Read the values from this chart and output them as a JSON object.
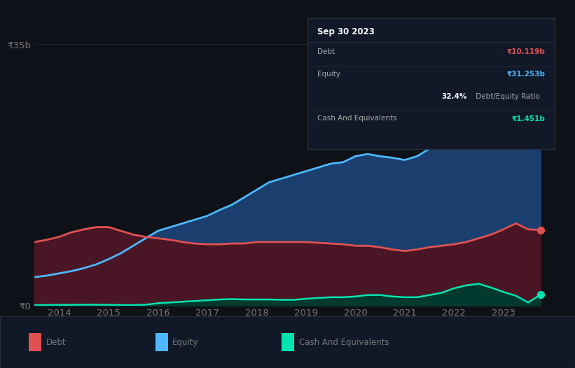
{
  "background_color": "#0e1117",
  "chart_bg": "#0e1117",
  "ylabel_35b": "₹35b",
  "ylabel_0": "₹0",
  "ylim": [
    0,
    37
  ],
  "xlim": [
    2013.5,
    2024.1
  ],
  "equity": {
    "x": [
      2013.5,
      2013.75,
      2014.0,
      2014.25,
      2014.5,
      2014.75,
      2015.0,
      2015.25,
      2015.5,
      2015.75,
      2016.0,
      2016.25,
      2016.5,
      2016.75,
      2017.0,
      2017.25,
      2017.5,
      2017.75,
      2018.0,
      2018.25,
      2018.5,
      2018.75,
      2019.0,
      2019.25,
      2019.5,
      2019.75,
      2020.0,
      2020.25,
      2020.5,
      2020.75,
      2021.0,
      2021.25,
      2021.5,
      2021.75,
      2022.0,
      2022.25,
      2022.5,
      2022.75,
      2023.0,
      2023.25,
      2023.5,
      2023.75
    ],
    "y": [
      3.8,
      4.0,
      4.3,
      4.6,
      5.0,
      5.5,
      6.2,
      7.0,
      8.0,
      9.0,
      10.0,
      10.5,
      11.0,
      11.5,
      12.0,
      12.8,
      13.5,
      14.5,
      15.5,
      16.5,
      17.0,
      17.5,
      18.0,
      18.5,
      19.0,
      19.2,
      20.0,
      20.3,
      20.0,
      19.8,
      19.5,
      20.0,
      21.0,
      22.0,
      22.5,
      23.0,
      24.0,
      25.5,
      27.0,
      28.5,
      30.5,
      31.253
    ],
    "color": "#4db8ff",
    "fill_color": "#1a3f6f",
    "linewidth": 2.0,
    "dot_color": "#4db8ff",
    "dot_size": 50
  },
  "debt": {
    "x": [
      2013.5,
      2013.75,
      2014.0,
      2014.25,
      2014.5,
      2014.75,
      2015.0,
      2015.25,
      2015.5,
      2015.75,
      2016.0,
      2016.25,
      2016.5,
      2016.75,
      2017.0,
      2017.25,
      2017.5,
      2017.75,
      2018.0,
      2018.25,
      2018.5,
      2018.75,
      2019.0,
      2019.25,
      2019.5,
      2019.75,
      2020.0,
      2020.25,
      2020.5,
      2020.75,
      2021.0,
      2021.25,
      2021.5,
      2021.75,
      2022.0,
      2022.25,
      2022.5,
      2022.75,
      2023.0,
      2023.25,
      2023.5,
      2023.75
    ],
    "y": [
      8.5,
      8.8,
      9.2,
      9.8,
      10.2,
      10.5,
      10.5,
      10.0,
      9.5,
      9.2,
      9.0,
      8.8,
      8.5,
      8.3,
      8.2,
      8.2,
      8.3,
      8.3,
      8.5,
      8.5,
      8.5,
      8.5,
      8.5,
      8.4,
      8.3,
      8.2,
      8.0,
      8.0,
      7.8,
      7.5,
      7.3,
      7.5,
      7.8,
      8.0,
      8.2,
      8.5,
      9.0,
      9.5,
      10.2,
      11.0,
      10.2,
      10.119
    ],
    "color": "#e05252",
    "fill_color": "#4a1525",
    "linewidth": 2.0,
    "dot_color": "#e05252",
    "dot_size": 50
  },
  "cash": {
    "x": [
      2013.5,
      2013.75,
      2014.0,
      2014.25,
      2014.5,
      2014.75,
      2015.0,
      2015.25,
      2015.5,
      2015.75,
      2016.0,
      2016.25,
      2016.5,
      2016.75,
      2017.0,
      2017.25,
      2017.5,
      2017.75,
      2018.0,
      2018.25,
      2018.5,
      2018.75,
      2019.0,
      2019.25,
      2019.5,
      2019.75,
      2020.0,
      2020.25,
      2020.5,
      2020.75,
      2021.0,
      2021.25,
      2021.5,
      2021.75,
      2022.0,
      2022.25,
      2022.5,
      2022.75,
      2023.0,
      2023.25,
      2023.5,
      2023.75
    ],
    "y": [
      0.05,
      0.05,
      0.08,
      0.08,
      0.1,
      0.1,
      0.08,
      0.05,
      0.05,
      0.1,
      0.3,
      0.4,
      0.5,
      0.6,
      0.7,
      0.8,
      0.85,
      0.8,
      0.8,
      0.8,
      0.75,
      0.75,
      0.9,
      1.0,
      1.1,
      1.1,
      1.2,
      1.4,
      1.4,
      1.2,
      1.1,
      1.1,
      1.4,
      1.7,
      2.3,
      2.7,
      2.9,
      2.4,
      1.8,
      1.3,
      0.4,
      1.451
    ],
    "color": "#00e5b0",
    "fill_color": "#003a2e",
    "linewidth": 1.8,
    "dot_color": "#00e5b0",
    "dot_size": 50
  },
  "tooltip": {
    "bg_color": "#111827",
    "border_color": "#2a2d3a",
    "date": "Sep 30 2023",
    "date_color": "#ffffff",
    "rows": [
      {
        "label": "Debt",
        "value": "₹10.119b",
        "value_color": "#e05252"
      },
      {
        "label": "Equity",
        "value": "₹31.253b",
        "value_color": "#4db8ff"
      },
      {
        "label_bold": "32.4%",
        "label_rest": " Debt/Equity Ratio",
        "value": "",
        "value_color": ""
      },
      {
        "label": "Cash And Equivalents",
        "value": "₹1.451b",
        "value_color": "#00e5b0"
      }
    ],
    "label_color": "#aaaaaa",
    "ratio_bold_color": "#ffffff",
    "ratio_rest_color": "#aaaaaa"
  },
  "legend": {
    "items": [
      {
        "label": "Debt",
        "color": "#e05252"
      },
      {
        "label": "Equity",
        "color": "#4db8ff"
      },
      {
        "label": "Cash And Equivalents",
        "color": "#00e5b0"
      }
    ]
  },
  "grid_color": "#1e2535",
  "grid_linewidth": 0.6,
  "tick_color": "#777777",
  "tick_fontsize": 9.5
}
